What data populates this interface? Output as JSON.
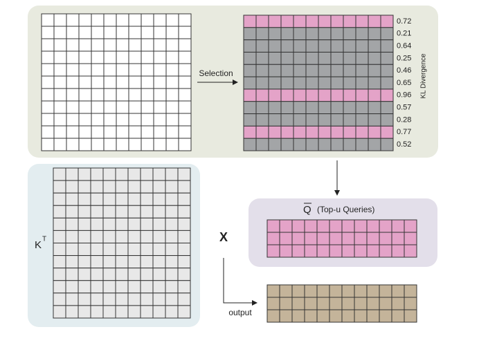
{
  "selection_label": "Selection",
  "kl_axis_label": "KL Divergence",
  "kl_rows": [
    {
      "kl": 0.72,
      "selected": true
    },
    {
      "kl": 0.21,
      "selected": false
    },
    {
      "kl": 0.64,
      "selected": false
    },
    {
      "kl": 0.25,
      "selected": false
    },
    {
      "kl": 0.46,
      "selected": false
    },
    {
      "kl": 0.65,
      "selected": false
    },
    {
      "kl": 0.96,
      "selected": true
    },
    {
      "kl": 0.57,
      "selected": false
    },
    {
      "kl": 0.28,
      "selected": false
    },
    {
      "kl": 0.77,
      "selected": true
    },
    {
      "kl": 0.52,
      "selected": false
    }
  ],
  "key_label": {
    "base": "K",
    "superscript": "T"
  },
  "multiply_label": "X",
  "queries": {
    "symbol": "Q",
    "label": "(Top-u Queries)"
  },
  "output_label": "output"
}
